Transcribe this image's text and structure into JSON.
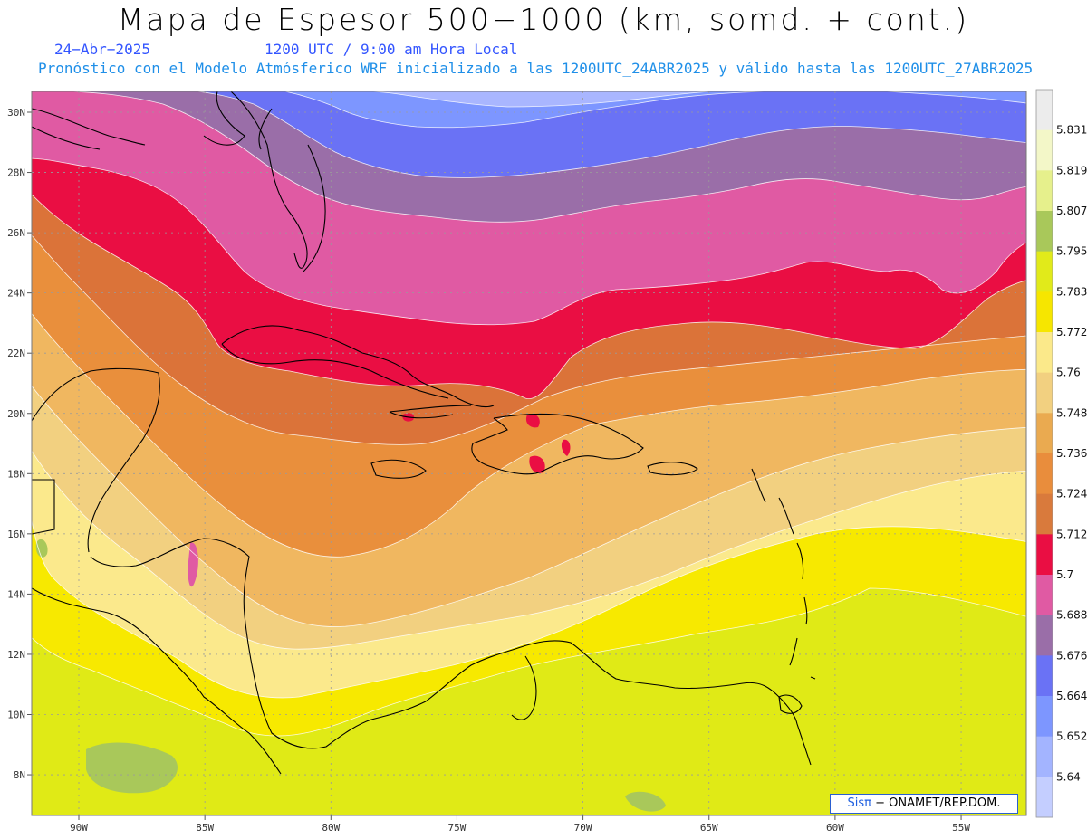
{
  "header": {
    "title": "Mapa de Espesor 500−1000 (km, somd. + cont.)",
    "date": "24−Abr−2025",
    "time": "1200 UTC / 9:00 am Hora Local",
    "init_text": "Pronóstico con el Modelo Atmósferico WRF inicializado a las 1200UTC_24ABR2025 y válido hasta las  1200UTC_27ABR2025"
  },
  "map": {
    "lat_labels": [
      "30N",
      "28N",
      "26N",
      "24N",
      "22N",
      "20N",
      "18N",
      "16N",
      "14N",
      "12N",
      "10N",
      "8N"
    ],
    "lon_labels": [
      "90W",
      "85W",
      "80W",
      "75W",
      "70W",
      "65W",
      "60W",
      "55W"
    ],
    "band_colors": [
      "#a9b6ff",
      "#7d96ff",
      "#6a72f5",
      "#9a6ea8",
      "#e05aa3",
      "#ea0e43",
      "#db7339",
      "#e98f3c",
      "#f0b760",
      "#f2d080",
      "#fbe98c",
      "#f7e900",
      "#e0ea16"
    ]
  },
  "colorbar": {
    "labels": [
      "5.831",
      "5.819",
      "5.807",
      "5.795",
      "5.783",
      "5.772",
      "5.76",
      "5.748",
      "5.736",
      "5.724",
      "5.712",
      "5.7",
      "5.688",
      "5.676",
      "5.664",
      "5.652",
      "5.64"
    ],
    "colors": [
      "#ececec",
      "#f3f7c8",
      "#e6f08c",
      "#a9c85a",
      "#e1ea1a",
      "#f6e600",
      "#fbe98a",
      "#f2d080",
      "#eaaa50",
      "#e98d3c",
      "#d97a3c",
      "#ea0e43",
      "#e05aa3",
      "#9a6ea8",
      "#6a72f5",
      "#7d96ff",
      "#a3b4ff",
      "#c4ceff"
    ]
  },
  "credit": {
    "sis": "Sisπ",
    "text": "− ONAMET/REP.DOM."
  }
}
